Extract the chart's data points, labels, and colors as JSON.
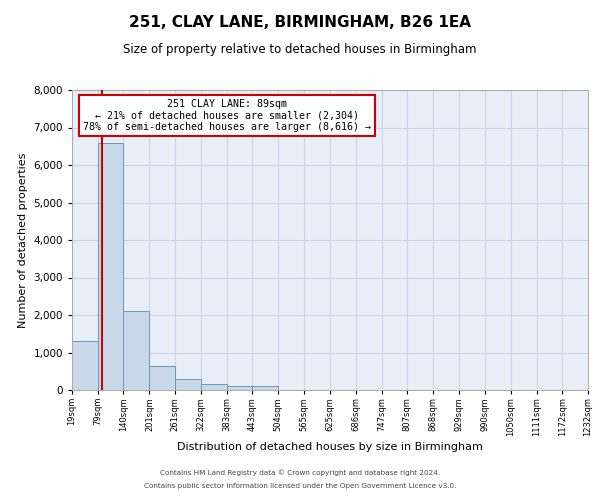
{
  "title": "251, CLAY LANE, BIRMINGHAM, B26 1EA",
  "subtitle": "Size of property relative to detached houses in Birmingham",
  "xlabel": "Distribution of detached houses by size in Birmingham",
  "ylabel": "Number of detached properties",
  "bar_values": [
    1300,
    6600,
    2100,
    650,
    300,
    150,
    100,
    100,
    0,
    0,
    0,
    0,
    0,
    0,
    0,
    0,
    0,
    0,
    0,
    0
  ],
  "bin_edges": [
    19,
    79,
    140,
    201,
    261,
    322,
    383,
    443,
    504,
    565,
    625,
    686,
    747,
    807,
    868,
    929,
    990,
    1050,
    1111,
    1172,
    1232
  ],
  "xtick_labels": [
    "19sqm",
    "79sqm",
    "140sqm",
    "201sqm",
    "261sqm",
    "322sqm",
    "383sqm",
    "443sqm",
    "504sqm",
    "565sqm",
    "625sqm",
    "686sqm",
    "747sqm",
    "807sqm",
    "868sqm",
    "929sqm",
    "990sqm",
    "1050sqm",
    "1111sqm",
    "1172sqm",
    "1232sqm"
  ],
  "bar_color": "#c8d8e8",
  "bar_edgecolor": "#6699bb",
  "property_line_x": 89,
  "property_line_color": "#cc0000",
  "annotation_text": "251 CLAY LANE: 89sqm\n← 21% of detached houses are smaller (2,304)\n78% of semi-detached houses are larger (8,616) →",
  "annotation_box_color": "#cc0000",
  "ylim": [
    0,
    8000
  ],
  "yticks": [
    0,
    1000,
    2000,
    3000,
    4000,
    5000,
    6000,
    7000,
    8000
  ],
  "grid_color": "#c8d4e8",
  "background_color": "#e8eef8",
  "title_fontsize": 11,
  "subtitle_fontsize": 8.5,
  "footer1": "Contains HM Land Registry data © Crown copyright and database right 2024.",
  "footer2": "Contains public sector information licensed under the Open Government Licence v3.0."
}
